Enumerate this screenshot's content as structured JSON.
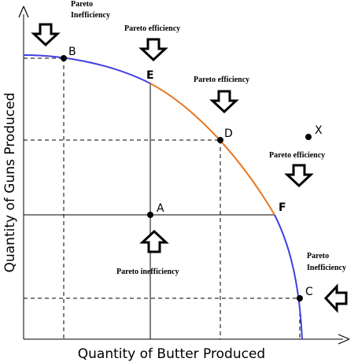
{
  "axes": {
    "x_label": "Quantity of Butter Produced",
    "y_label": "Quantity of Guns Produced"
  },
  "points": {
    "A": "A",
    "B": "B",
    "C": "C",
    "D": "D",
    "E": "E",
    "F": "F",
    "X": "X"
  },
  "annotations": {
    "pareto_inefficiency_top_line1": "Pareto",
    "pareto_inefficiency_top_line2": "Inefficiency",
    "pareto_efficiency_1": "Pareto efficiency",
    "pareto_efficiency_2": "Pareto efficiency",
    "pareto_efficiency_3": "Pareto efficiency",
    "pareto_inefficiency_center": "Pareto inefficiency",
    "pareto_inefficiency_right_line1": "Pareto",
    "pareto_inefficiency_right_line2": "Inefficiency"
  },
  "colors": {
    "curve_outer": "#4040e0",
    "curve_efficient": "#e87722",
    "axes": "#000000"
  }
}
